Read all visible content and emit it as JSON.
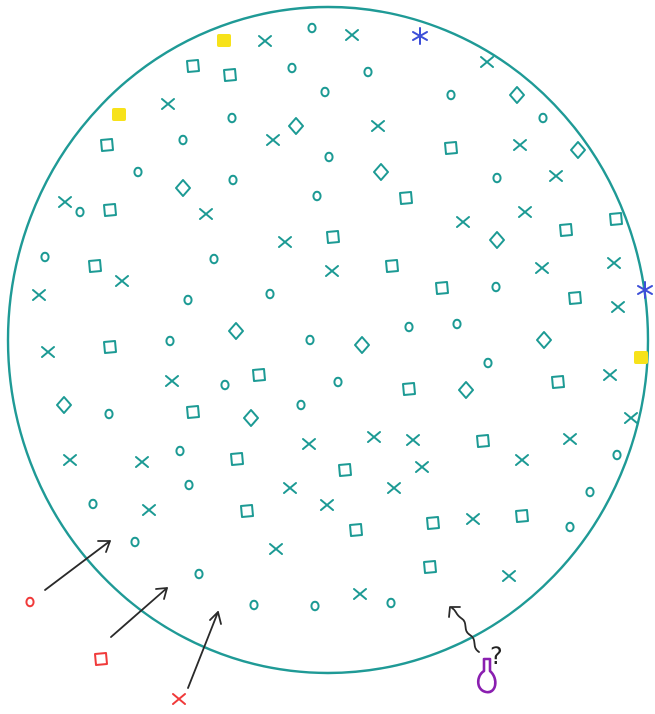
{
  "colors": {
    "circle": "#1f9a96",
    "mark": "#1c9a94",
    "legend_red": "#f03a3a",
    "arrow": "#2a2a2a",
    "highlight": "#f7e21a",
    "star": "#3d4fd8",
    "flask": "#8a1fb0"
  },
  "legend": [
    {
      "symbol": "circle-mark",
      "label": ""
    },
    {
      "symbol": "square-mark",
      "label": ""
    },
    {
      "symbol": "cross-mark",
      "label": ""
    }
  ],
  "annotation": {
    "text": "?"
  }
}
